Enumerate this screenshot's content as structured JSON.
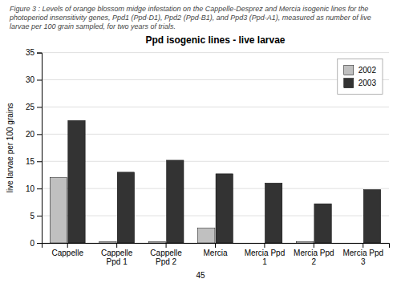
{
  "chart_data": {
    "type": "bar",
    "title": "Ppd isogenic lines - live larvae",
    "subtitle": "Figure 3 : Levels of orange blossom midge infestation on the Cappelle-Desprez and Mercia isogenic lines for the photoperiod insensitivity genes, Ppd1 (Ppd-D1), Ppd2 (Ppd-B1), and Ppd3 (Ppd-A1), measured as number of live larvae per 100 grain sampled, for two years of trials.",
    "ylabel": "live larvae per 100 grains",
    "categories": [
      "Cappelle",
      "Cappelle Ppd 1",
      "Cappelle Ppd 2",
      "Mercia",
      "Mercia Ppd 1",
      "Mercia Ppd 2",
      "Mercia Ppd 3"
    ],
    "series": [
      {
        "name": "2002",
        "color": "#c0c0c0",
        "values": [
          12.0,
          0.2,
          0.2,
          2.7,
          0.0,
          0.2,
          0.0
        ]
      },
      {
        "name": "2003",
        "color": "#333333",
        "values": [
          22.5,
          13.0,
          15.2,
          12.7,
          11.0,
          7.2,
          9.8
        ]
      }
    ],
    "ylim": [
      0,
      35
    ],
    "yticks": [
      0,
      5,
      10,
      15,
      20,
      25,
      30,
      35
    ],
    "grid": true,
    "legend": "upper right",
    "annotations": [
      "45"
    ]
  }
}
